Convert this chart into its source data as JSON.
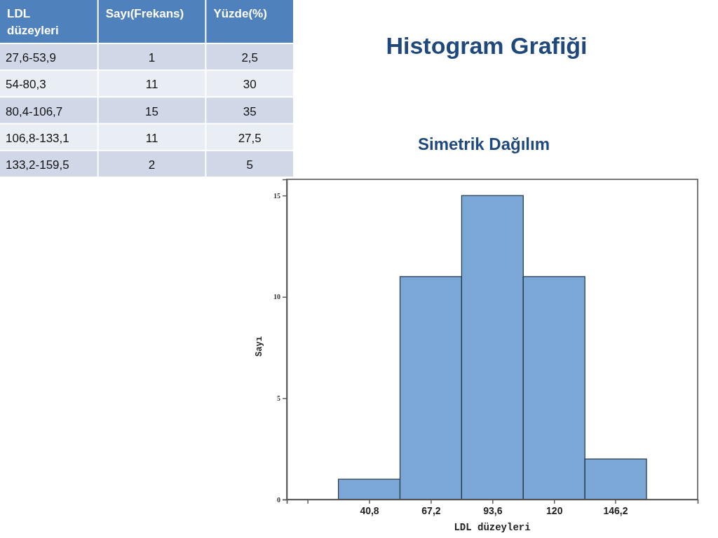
{
  "chart_data": [
    {
      "type": "other",
      "xlabel": "LDL düzeyleri",
      "categories": [
        "27,6-53,9",
        "54-80,3",
        "80,4-106,7",
        "106,8-133,1",
        "133,2-159,5"
      ],
      "data_labels": true,
      "series": [
        {
          "name": "Sayı(Frekans)",
          "values": [
            1,
            11,
            15,
            11,
            2
          ],
          "colors": [
            "#d0d8e8",
            "#e9edf4",
            "#d0d8e8",
            "#e9edf4",
            "#d0d8e8"
          ]
        },
        {
          "name": "Yüzde(%)",
          "values": [
            2.5,
            30,
            35,
            27.5,
            5
          ],
          "value_labels": [
            "2,5",
            "30",
            "35",
            "27,5",
            "5"
          ],
          "colors": [
            "#d0d8e8",
            "#e9edf4",
            "#d0d8e8",
            "#e9edf4",
            "#d0d8e8"
          ]
        }
      ]
    },
    {
      "type": "histogram",
      "title": "Histogram Grafiği",
      "subtitle": "Simetrik Dağılım",
      "xlabel": "LDL düzeyleri",
      "ylabel": "Sayı",
      "bins": [
        27.6,
        54,
        80.4,
        106.8,
        133.2,
        159.6
      ],
      "values": [
        1,
        11,
        15,
        11,
        2
      ],
      "color": "#7aa7d5",
      "xlim": [
        5.5,
        181.5
      ],
      "ylim": [
        0,
        15.8
      ],
      "xticks": [
        {
          "value": 14.4,
          "label": null
        },
        {
          "value": 40.8,
          "label": "40,8"
        },
        {
          "value": 67.2,
          "label": "67,2"
        },
        {
          "value": 93.6,
          "label": "93,6"
        },
        {
          "value": 120,
          "label": "120"
        },
        {
          "value": 146.2,
          "label": "146,2"
        }
      ],
      "yticks": [
        0,
        5,
        10,
        15
      ]
    }
  ]
}
